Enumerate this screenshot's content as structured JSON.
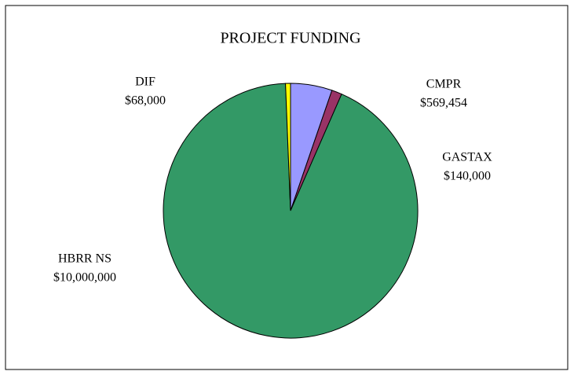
{
  "chart_data": {
    "type": "pie",
    "title": "PROJECT FUNDING",
    "categories": [
      "CMPR",
      "GASTAX",
      "HBRR NS",
      "DIF"
    ],
    "values": [
      569454,
      140000,
      10000000,
      68000
    ],
    "value_labels": [
      "$569,454",
      "$140,000",
      "$10,000,000",
      "$68,000"
    ],
    "colors": [
      "#9999ff",
      "#993366",
      "#339966",
      "#ffff00"
    ]
  }
}
